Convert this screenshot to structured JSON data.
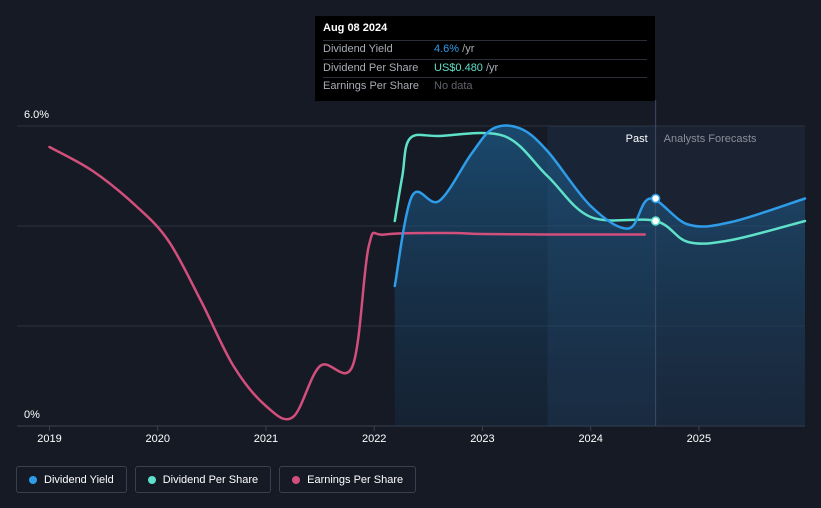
{
  "tooltip": {
    "date": "Aug 08 2024",
    "rows": [
      {
        "label": "Dividend Yield",
        "value": "4.6%",
        "unit": " /yr",
        "color": "#2e9ce8"
      },
      {
        "label": "Dividend Per Share",
        "value": "US$0.480",
        "unit": " /yr",
        "color": "#5fe0c8"
      },
      {
        "label": "Earnings Per Share",
        "value": "No data",
        "unit": "",
        "color": "#5f636c"
      }
    ]
  },
  "legend": [
    {
      "label": "Dividend Yield",
      "color": "#2e9ce8"
    },
    {
      "label": "Dividend Per Share",
      "color": "#5fe0c8"
    },
    {
      "label": "Earnings Per Share",
      "color": "#d24f7c"
    }
  ],
  "chart_data": {
    "type": "line",
    "ylim": [
      0,
      6
    ],
    "y_tick_labels": [
      "6.0%",
      "0%"
    ],
    "x_range": [
      2018.7,
      2025.98
    ],
    "x_ticks": [
      2019,
      2020,
      2021,
      2022,
      2023,
      2024,
      2025
    ],
    "x_tick_labels": [
      "2019",
      "2020",
      "2021",
      "2022",
      "2023",
      "2024",
      "2025"
    ],
    "past_label": "Past",
    "forecast_label": "Analysts Forecasts",
    "divider_x": 2024.6,
    "forecast_shade_start": 2023.6,
    "series": [
      {
        "name": "Earnings Per Share",
        "color": "#d24f7c",
        "points": [
          [
            2019.0,
            5.58
          ],
          [
            2019.4,
            5.1
          ],
          [
            2019.8,
            4.4
          ],
          [
            2020.1,
            3.7
          ],
          [
            2020.4,
            2.5
          ],
          [
            2020.7,
            1.2
          ],
          [
            2021.0,
            0.4
          ],
          [
            2021.25,
            0.18
          ],
          [
            2021.5,
            1.2
          ],
          [
            2021.8,
            1.2
          ],
          [
            2021.95,
            3.6
          ],
          [
            2022.1,
            3.83
          ],
          [
            2022.7,
            3.86
          ],
          [
            2023.0,
            3.84
          ],
          [
            2023.6,
            3.83
          ],
          [
            2024.5,
            3.83
          ]
        ]
      },
      {
        "name": "Dividend Per Share",
        "color": "#5fe0c8",
        "points": [
          [
            2022.19,
            4.1
          ],
          [
            2022.26,
            5.0
          ],
          [
            2022.33,
            5.75
          ],
          [
            2022.6,
            5.8
          ],
          [
            2023.2,
            5.8
          ],
          [
            2023.6,
            5.0
          ],
          [
            2024.0,
            4.18
          ],
          [
            2024.6,
            4.1
          ],
          [
            2024.9,
            3.68
          ],
          [
            2025.3,
            3.72
          ],
          [
            2025.98,
            4.1
          ]
        ]
      },
      {
        "name": "Dividend Yield",
        "color": "#2e9ce8",
        "shaded": true,
        "points": [
          [
            2022.19,
            2.8
          ],
          [
            2022.35,
            4.6
          ],
          [
            2022.6,
            4.5
          ],
          [
            2022.9,
            5.45
          ],
          [
            2023.1,
            5.95
          ],
          [
            2023.35,
            5.95
          ],
          [
            2023.6,
            5.5
          ],
          [
            2024.0,
            4.4
          ],
          [
            2024.35,
            3.95
          ],
          [
            2024.55,
            4.55
          ],
          [
            2024.9,
            4.03
          ],
          [
            2025.3,
            4.08
          ],
          [
            2025.98,
            4.55
          ]
        ]
      }
    ],
    "highlight_points": [
      {
        "series": "Dividend Yield",
        "x": 2024.6,
        "y": 4.55
      },
      {
        "series": "Dividend Per Share",
        "x": 2024.6,
        "y": 4.1
      }
    ]
  }
}
